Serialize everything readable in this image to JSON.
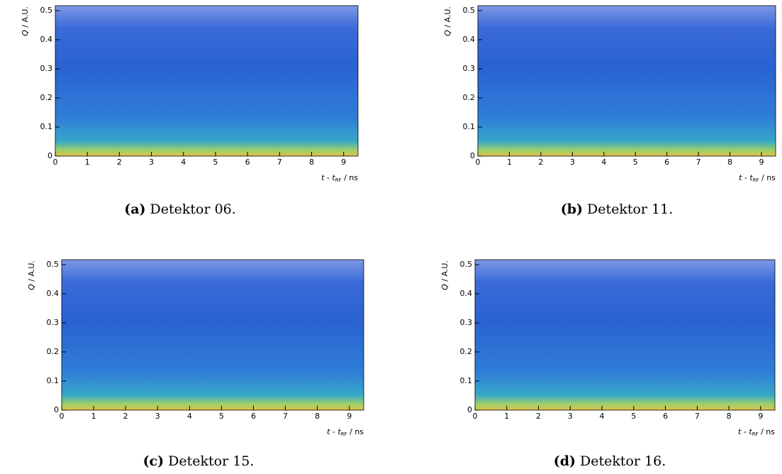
{
  "chart_data": [
    {
      "type": "heatmap",
      "caption_label": "(a)",
      "caption": "Detektor 06.",
      "x_label": [
        "t - t",
        "RF",
        " / ns"
      ],
      "y_label": [
        "Q",
        " / A.U."
      ],
      "xlim": [
        0,
        9.45
      ],
      "ylim": [
        0,
        0.517
      ],
      "xticks": [
        0,
        1,
        2,
        3,
        4,
        5,
        6,
        7,
        8,
        9
      ],
      "yticks": [
        0,
        0.1,
        0.2,
        0.3,
        0.4,
        0.5
      ]
    },
    {
      "type": "heatmap",
      "caption_label": "(b)",
      "caption": "Detektor 11.",
      "x_label": [
        "t - t",
        "RF",
        " / ns"
      ],
      "y_label": [
        "Q",
        " / A.U."
      ],
      "xlim": [
        0,
        9.45
      ],
      "ylim": [
        0,
        0.517
      ],
      "xticks": [
        0,
        1,
        2,
        3,
        4,
        5,
        6,
        7,
        8,
        9
      ],
      "yticks": [
        0,
        0.1,
        0.2,
        0.3,
        0.4,
        0.5
      ]
    },
    {
      "type": "heatmap",
      "caption_label": "(c)",
      "caption": "Detektor 15.",
      "x_label": [
        "t - t",
        "RF",
        " / ns"
      ],
      "y_label": [
        "Q",
        " / A.U."
      ],
      "xlim": [
        0,
        9.45
      ],
      "ylim": [
        0,
        0.517
      ],
      "xticks": [
        0,
        1,
        2,
        3,
        4,
        5,
        6,
        7,
        8,
        9
      ],
      "yticks": [
        0,
        0.1,
        0.2,
        0.3,
        0.4,
        0.5
      ]
    },
    {
      "type": "heatmap",
      "caption_label": "(d)",
      "caption": "Detektor 16.",
      "x_label": [
        "t - t",
        "RF",
        " / ns"
      ],
      "y_label": [
        "Q",
        " / A.U."
      ],
      "xlim": [
        0,
        9.45
      ],
      "ylim": [
        0,
        0.517
      ],
      "xticks": [
        0,
        1,
        2,
        3,
        4,
        5,
        6,
        7,
        8,
        9
      ],
      "yticks": [
        0,
        0.1,
        0.2,
        0.3,
        0.4,
        0.5
      ]
    }
  ]
}
